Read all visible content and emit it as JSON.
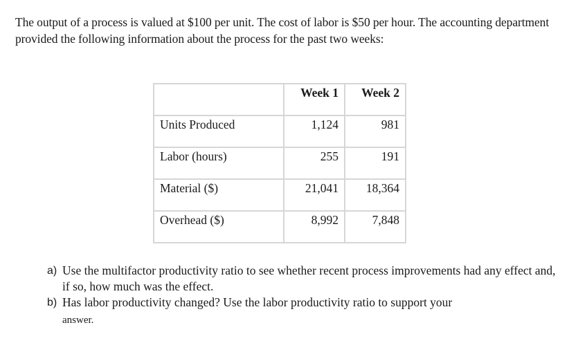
{
  "intro": {
    "text": "The output of a process is valued at $100 per unit.  The cost of labor is $50 per hour. The accounting department provided the following information about the process for the past two weeks:"
  },
  "table": {
    "headers": [
      "",
      "Week 1",
      "Week 2"
    ],
    "rows": [
      {
        "label": "Units Produced",
        "week1": "1,124",
        "week2": "981"
      },
      {
        "label": "Labor (hours)",
        "week1": "255",
        "week2": "191"
      },
      {
        "label": "Material ($)",
        "week1": "21,041",
        "week2": "18,364"
      },
      {
        "label": "Overhead ($)",
        "week1": "8,992",
        "week2": "7,848"
      }
    ]
  },
  "questions": [
    {
      "marker": "a)",
      "text": "Use the multifactor productivity ratio to see whether recent process improvements had any effect and, if so, how much was the effect."
    },
    {
      "marker": "b)",
      "text": "Has labor productivity changed?  Use the labor productivity ratio to support your",
      "continuation": "answer."
    }
  ]
}
